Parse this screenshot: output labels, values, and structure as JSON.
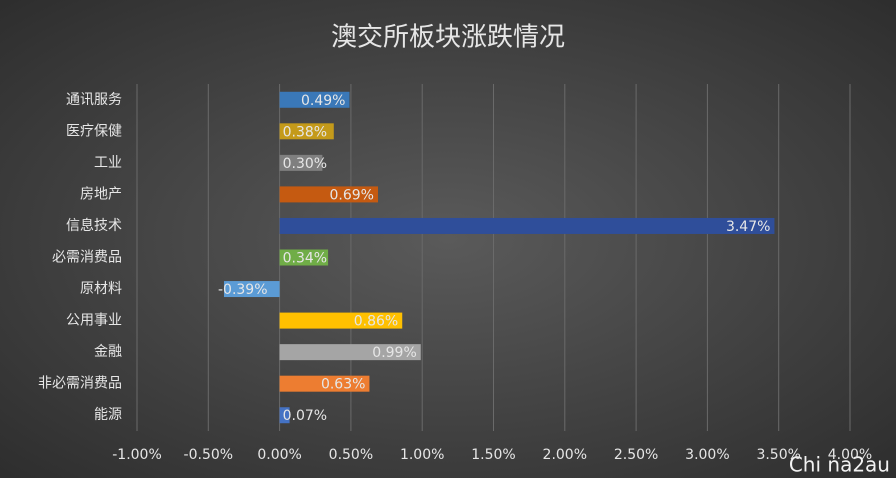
{
  "chart_data": {
    "type": "bar",
    "orientation": "horizontal",
    "title": "澳交所板块涨跌情况",
    "categories": [
      "通讯服务",
      "医疗保健",
      "工业",
      "房地产",
      "信息技术",
      "必需消费品",
      "原材料",
      "公用事业",
      "金融",
      "非必需消费品",
      "能源"
    ],
    "values": [
      0.49,
      0.38,
      0.3,
      0.69,
      3.47,
      0.34,
      -0.39,
      0.86,
      0.99,
      0.63,
      0.07
    ],
    "value_labels": [
      "0.49%",
      "0.38%",
      "0.30%",
      "0.69%",
      "3.47%",
      "0.34%",
      "-0.39%",
      "0.86%",
      "0.99%",
      "0.63%",
      "0.07%"
    ],
    "colors": [
      "#3a78b8",
      "#c49a1a",
      "#7f7f7f",
      "#c55a11",
      "#2f4e9a",
      "#70ad47",
      "#5b9bd5",
      "#ffc000",
      "#a5a5a5",
      "#ed7d31",
      "#4472c4"
    ],
    "xlim": [
      -1,
      4
    ],
    "xticks": [
      {
        "value": -1,
        "label": "-1.00%"
      },
      {
        "value": -0.5,
        "label": "-0.50%"
      },
      {
        "value": 0,
        "label": "0.00%"
      },
      {
        "value": 0.5,
        "label": "0.50%"
      },
      {
        "value": 1,
        "label": "1.00%"
      },
      {
        "value": 1.5,
        "label": "1.50%"
      },
      {
        "value": 2,
        "label": "2.00%"
      },
      {
        "value": 2.5,
        "label": "2.50%"
      },
      {
        "value": 3,
        "label": "3.00%"
      },
      {
        "value": 3.5,
        "label": "3.50%"
      },
      {
        "value": 4,
        "label": "4.00%"
      }
    ],
    "grid": true,
    "watermark": "Chi na2au"
  }
}
